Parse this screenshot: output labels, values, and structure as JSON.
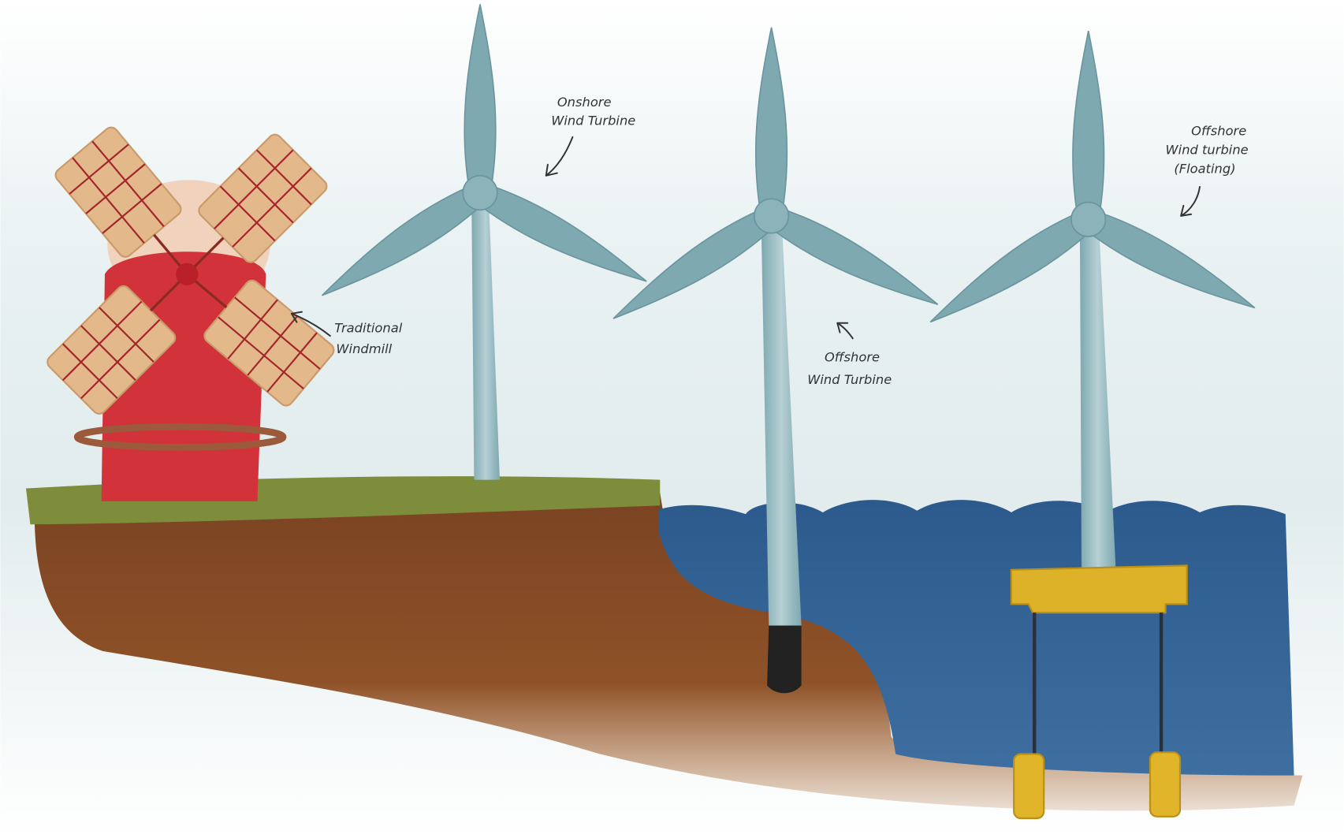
{
  "labels": [
    {
      "lines": [
        "Traditional",
        "Windmill"
      ]
    },
    {
      "lines": [
        "Onshore",
        "Wind Turbine"
      ]
    },
    {
      "lines": [
        "Offshore",
        "Wind Turbine"
      ]
    },
    {
      "lines": [
        "Offshore",
        "Wind turbine",
        "(Floating)"
      ]
    }
  ]
}
